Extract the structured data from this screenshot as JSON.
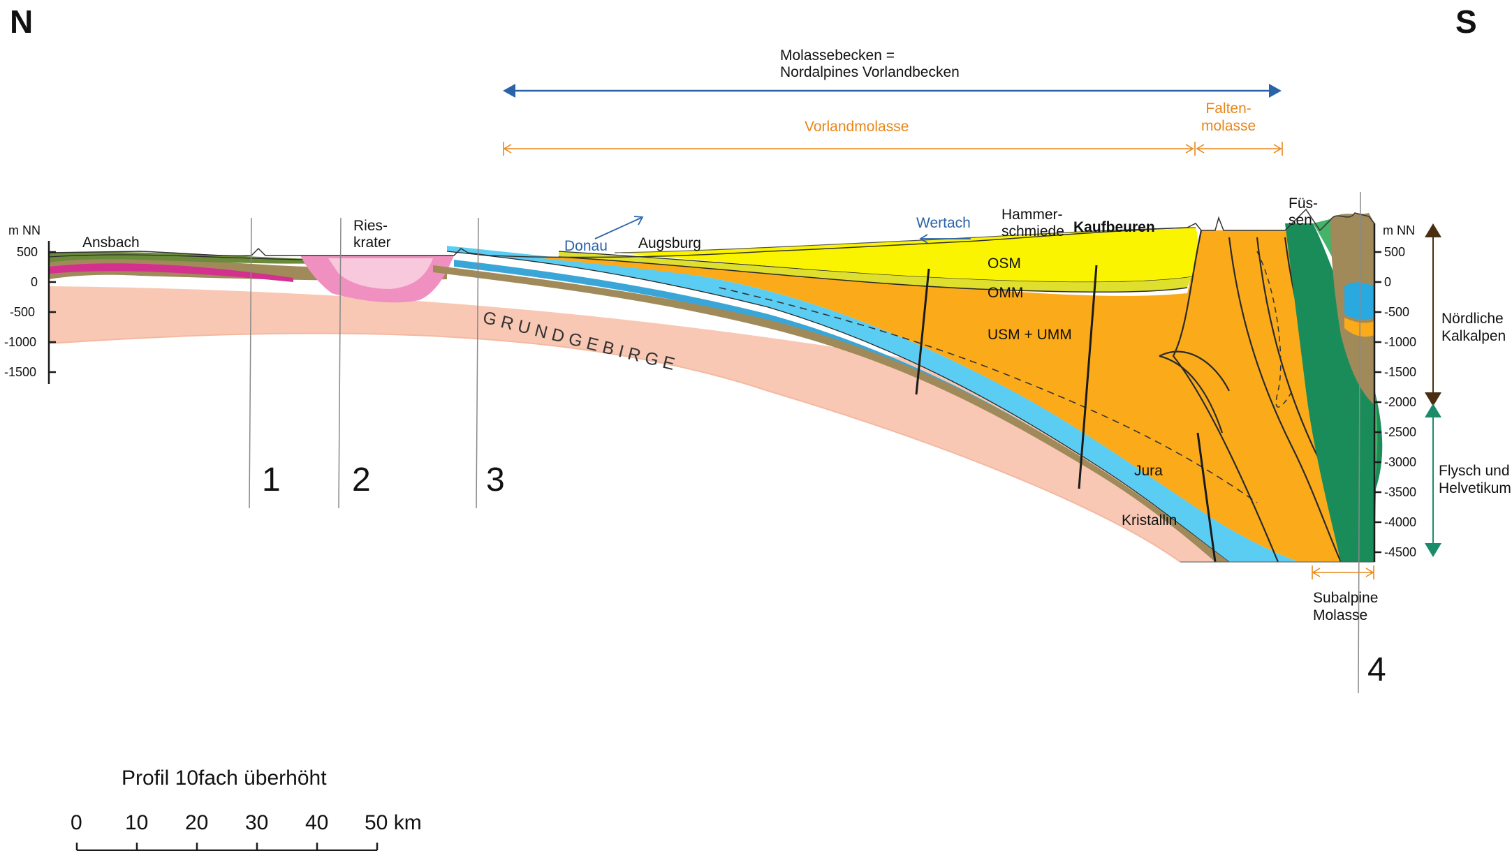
{
  "compass": {
    "north": "N",
    "south": "S"
  },
  "header": {
    "basin_line1": "Molassebecken =",
    "basin_line2": "Nordalpines Vorlandbecken",
    "foreland": "Vorlandmolasse",
    "fold_line1": "Falten-",
    "fold_line2": "molasse"
  },
  "places": {
    "ansbach": "Ansbach",
    "ries_line1": "Ries-",
    "ries_line2": "krater",
    "donau": "Donau",
    "augsburg": "Augsburg",
    "wertach": "Wertach",
    "hammer_line1": "Hammer-",
    "hammer_line2": "schmiede",
    "kaufbeuren": "Kaufbeuren",
    "fuessen_line1": "Füs-",
    "fuessen_line2": "sen"
  },
  "units": {
    "osm": "OSM",
    "omm": "OMM",
    "usm": "USM  + UMM",
    "jura": "Jura",
    "kristallin": "Kristallin",
    "grundgebirge": "G R U N D G E B I R G E"
  },
  "axis": {
    "unit": "m NN",
    "left_ticks": [
      "500",
      "0",
      "-500",
      "-1000",
      "-1500"
    ],
    "right_ticks": [
      "500",
      "0",
      "-500",
      "-1000",
      "-1500",
      "-2000",
      "-2500",
      "-3000",
      "-3500",
      "-4000",
      "-4500"
    ]
  },
  "zones": {
    "kalkalpen_line1": "Nördliche",
    "kalkalpen_line2": "Kalkalpen",
    "flysch_line1": "Flysch und",
    "flysch_line2": "Helvetikum"
  },
  "subalpine": {
    "line1": "Subalpine",
    "line2": "Molasse"
  },
  "markers": [
    "1",
    "2",
    "3",
    "4"
  ],
  "scale": {
    "title": "Profil 10fach überhöht",
    "ticks": [
      "0",
      "10",
      "20",
      "30",
      "40",
      "50 km"
    ]
  },
  "colors": {
    "kristallin": "#f8c8b4",
    "jura": "#5ccdf2",
    "jura_dark": "#3aa6d8",
    "trias": "#a08a5a",
    "usm": "#fbab1a",
    "omm": "#dfe02e",
    "osm": "#fbf400",
    "ries": "#f090c0",
    "ries_light": "#f8c8dc",
    "flysch": "#1a8c5a",
    "flysch_light": "#45b36a",
    "kalkalpen": "#a08a5a",
    "arrow_blue": "#2b63a8",
    "arrow_orange": "#e8861a"
  }
}
